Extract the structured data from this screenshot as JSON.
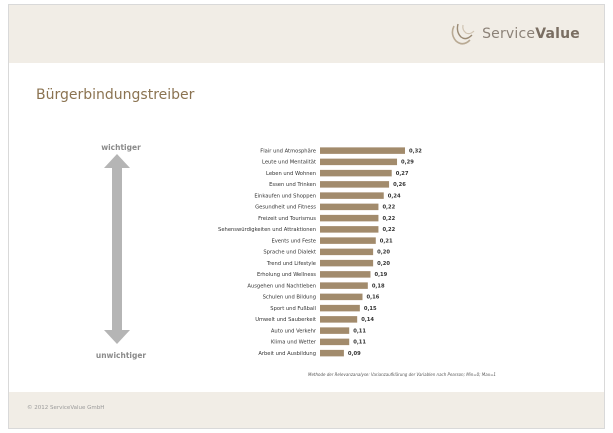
{
  "header": {
    "brand_regular": "Service",
    "brand_bold": "Value",
    "logo_icon": "service-value-swirl-icon"
  },
  "slide": {
    "title": "Bürgerbindungstreiber",
    "top_label": "wichtiger",
    "bottom_label": "unwichtiger",
    "footnote": "Methode der Relevanzanalyse: Varianzaufklärung der Variablen nach Pearson; Min=0; Max=1"
  },
  "footer": {
    "copyright": "© 2012 ServiceValue GmbH"
  },
  "colors": {
    "bar": "#a28b6c",
    "title": "#8b7351",
    "band": "#f1ede6",
    "arrow": "#b5b5b5"
  },
  "chart_data": {
    "type": "bar",
    "orientation": "horizontal",
    "categories": [
      "Flair und Atmosphäre",
      "Leute und Mentalität",
      "Leben und Wohnen",
      "Essen und Trinken",
      "Einkaufen und Shoppen",
      "Gesundheit und Fitness",
      "Freizeit und Tourismus",
      "Sehenswürdigkeiten und Attraktionen",
      "Events und Feste",
      "Sprache und Dialekt",
      "Trend und Lifestyle",
      "Erholung und Wellness",
      "Ausgehen und Nachtleben",
      "Schulen und Bildung",
      "Sport und Fußball",
      "Umwelt und Sauberkeit",
      "Auto und Verkehr",
      "Klima und Wetter",
      "Arbeit und Ausbildung"
    ],
    "values": [
      0.32,
      0.29,
      0.27,
      0.26,
      0.24,
      0.22,
      0.22,
      0.22,
      0.21,
      0.2,
      0.2,
      0.19,
      0.18,
      0.16,
      0.15,
      0.14,
      0.11,
      0.11,
      0.09
    ],
    "value_labels": [
      "0,32",
      "0,29",
      "0,27",
      "0,26",
      "0,24",
      "0,22",
      "0,22",
      "0,22",
      "0,21",
      "0,20",
      "0,20",
      "0,19",
      "0,18",
      "0,16",
      "0,15",
      "0,14",
      "0,11",
      "0,11",
      "0,09"
    ],
    "title": "",
    "xlabel": "",
    "ylabel": "",
    "xlim": [
      0,
      0.32
    ],
    "grid": false,
    "legend": "none"
  }
}
